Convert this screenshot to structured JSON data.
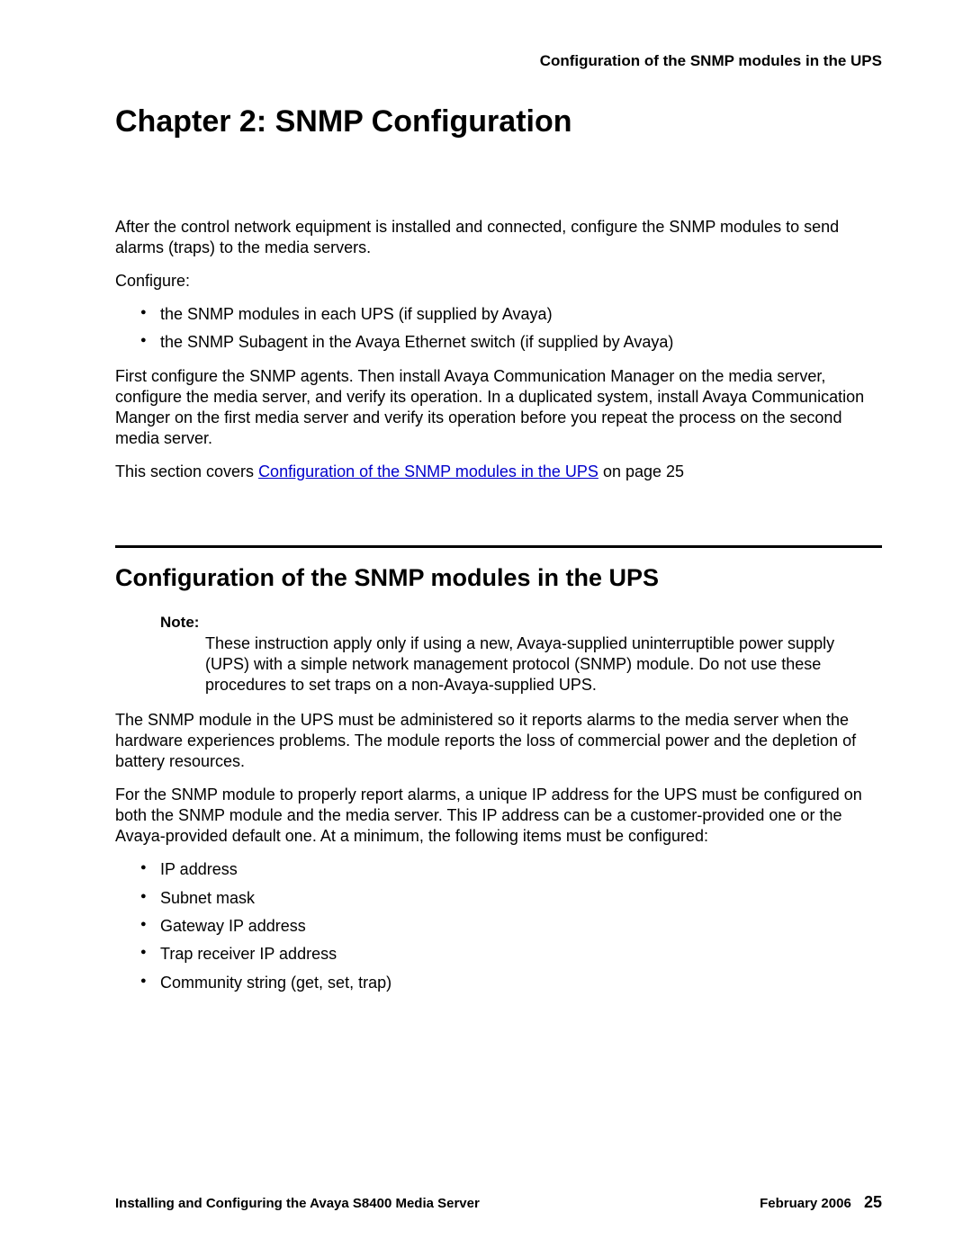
{
  "header": {
    "running_title": "Configuration of the SNMP modules in the UPS"
  },
  "chapter": {
    "title": "Chapter 2:   SNMP Configuration"
  },
  "intro": {
    "p1": "After the control network equipment is installed and connected, configure the SNMP modules to send alarms (traps) to the media servers.",
    "p2": "Configure:",
    "bullets": [
      "the SNMP modules in each UPS (if supplied by Avaya)",
      "the SNMP Subagent in the Avaya Ethernet switch (if supplied by Avaya)"
    ],
    "p3": "First configure the SNMP agents. Then install Avaya Communication Manager on the media server, configure the media server, and verify its operation. In a duplicated system, install Avaya Communication Manger on the first media server and verify its operation before you repeat the process on the second media server.",
    "p4_pre": "This section covers ",
    "p4_link": "Configuration of the SNMP modules in the UPS",
    "p4_post": " on page 25"
  },
  "section": {
    "title": "Configuration of the SNMP modules in the UPS",
    "note_label": "Note:",
    "note_body": "These instruction apply only if using a new, Avaya-supplied uninterruptible power supply (UPS) with a simple network management protocol (SNMP) module. Do not use these procedures to set traps on a non-Avaya-supplied UPS.",
    "p1": "The SNMP module in the UPS must be administered so it reports alarms to the media server when the hardware experiences problems. The module reports the loss of commercial power and the depletion of battery resources.",
    "p2": "For the SNMP module to properly report alarms, a unique IP address for the UPS must be configured on both the SNMP module and the media server. This IP address can be a customer-provided one or the Avaya-provided default one. At a minimum, the following items must be configured:",
    "bullets": [
      "IP address",
      "Subnet mask",
      "Gateway IP address",
      "Trap receiver IP address",
      "Community string (get, set, trap)"
    ]
  },
  "footer": {
    "left": "Installing and Configuring the Avaya S8400 Media Server",
    "date": "February 2006",
    "page": "25"
  },
  "colors": {
    "text": "#000000",
    "link": "#0000cc",
    "background": "#ffffff",
    "rule": "#000000"
  },
  "typography": {
    "body_fontsize_pt": 14,
    "chapter_title_fontsize_pt": 26,
    "section_title_fontsize_pt": 20,
    "footer_fontsize_pt": 11,
    "font_family": "Arial, Helvetica, sans-serif"
  }
}
